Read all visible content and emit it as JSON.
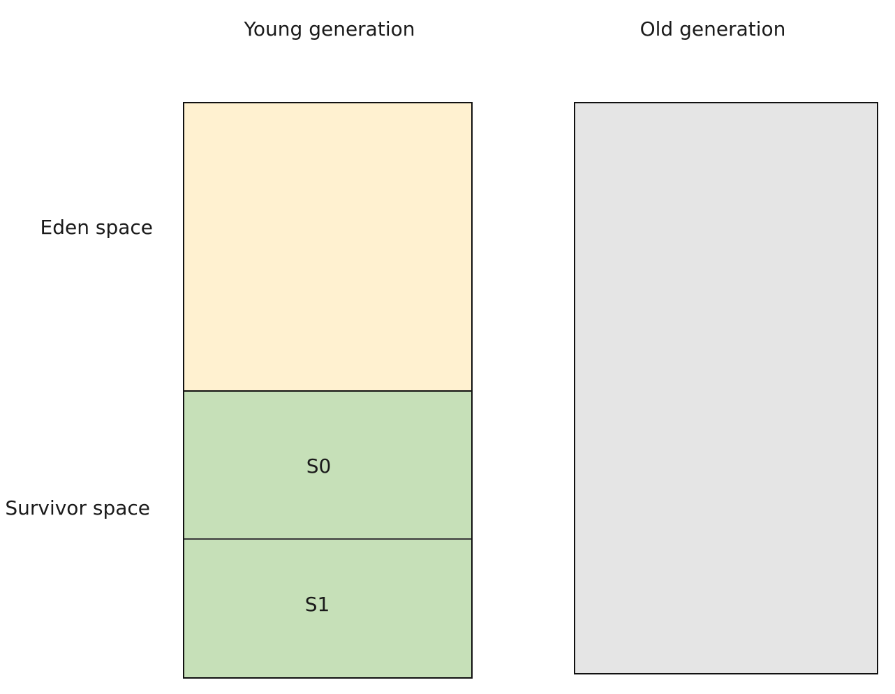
{
  "diagram": {
    "columns": {
      "young_title": "Young generation",
      "old_title": "Old generation"
    },
    "side_labels": {
      "eden": "Eden space",
      "survivor": "Survivor space"
    },
    "survivor_regions": {
      "s0": "S0",
      "s1": "S1"
    },
    "colors": {
      "eden": "#fff1d0",
      "survivor": "#c6e0b8",
      "old": "#e5e5e5",
      "border": "#111111"
    }
  }
}
